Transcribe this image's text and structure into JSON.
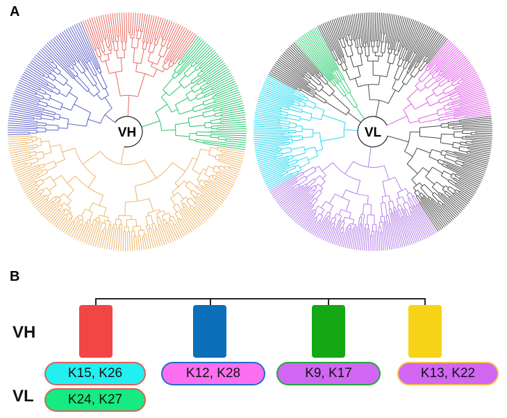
{
  "panels": {
    "a": "A",
    "b": "B"
  },
  "trees": [
    {
      "id": "vh",
      "label": "VH",
      "clades": [
        {
          "name": "blue",
          "color": "#5a60c8",
          "leaves": 62
        },
        {
          "name": "red",
          "color": "#e8675e",
          "leaves": 52
        },
        {
          "name": "green",
          "color": "#22c46a",
          "leaves": 56
        },
        {
          "name": "orange",
          "color": "#eeb46a",
          "leaves": 150
        }
      ]
    },
    {
      "id": "vl",
      "label": "VL",
      "clades": [
        {
          "name": "grey-top",
          "color": "#4a4a4a",
          "leaves": 70
        },
        {
          "name": "purple",
          "color": "#b47ee8",
          "leaves": 100
        },
        {
          "name": "cyan",
          "color": "#22d8f0",
          "leaves": 62
        },
        {
          "name": "grey-mid",
          "color": "#4a4a4a",
          "leaves": 22
        },
        {
          "name": "green",
          "color": "#2ecf72",
          "leaves": 14
        },
        {
          "name": "grey-bottom",
          "color": "#4a4a4a",
          "leaves": 72
        },
        {
          "name": "magenta",
          "color": "#e05ae8",
          "leaves": 46
        }
      ]
    }
  ],
  "cluster_diagram": {
    "row_labels": {
      "vh": "VH",
      "vl": "VL"
    },
    "vh_blocks": [
      {
        "name": "red",
        "color": "#f24646"
      },
      {
        "name": "blue",
        "color": "#0a6fb8"
      },
      {
        "name": "green",
        "color": "#14a814"
      },
      {
        "name": "yellow",
        "color": "#f7d317"
      }
    ],
    "vl_pills": [
      {
        "label": "K15, K26",
        "fill": "#23eef0",
        "border": "#d9605a"
      },
      {
        "label": "K24, K27",
        "fill": "#15eb80",
        "border": "#d9605a"
      },
      {
        "label": "K12, K28",
        "fill": "#fb6ef0",
        "border": "#1a6fc4"
      },
      {
        "label": "K9, K17",
        "fill": "#d166f3",
        "border": "#22a83a"
      },
      {
        "label": "K13, K22",
        "fill": "#d166f3",
        "border": "#f5c142"
      }
    ]
  }
}
